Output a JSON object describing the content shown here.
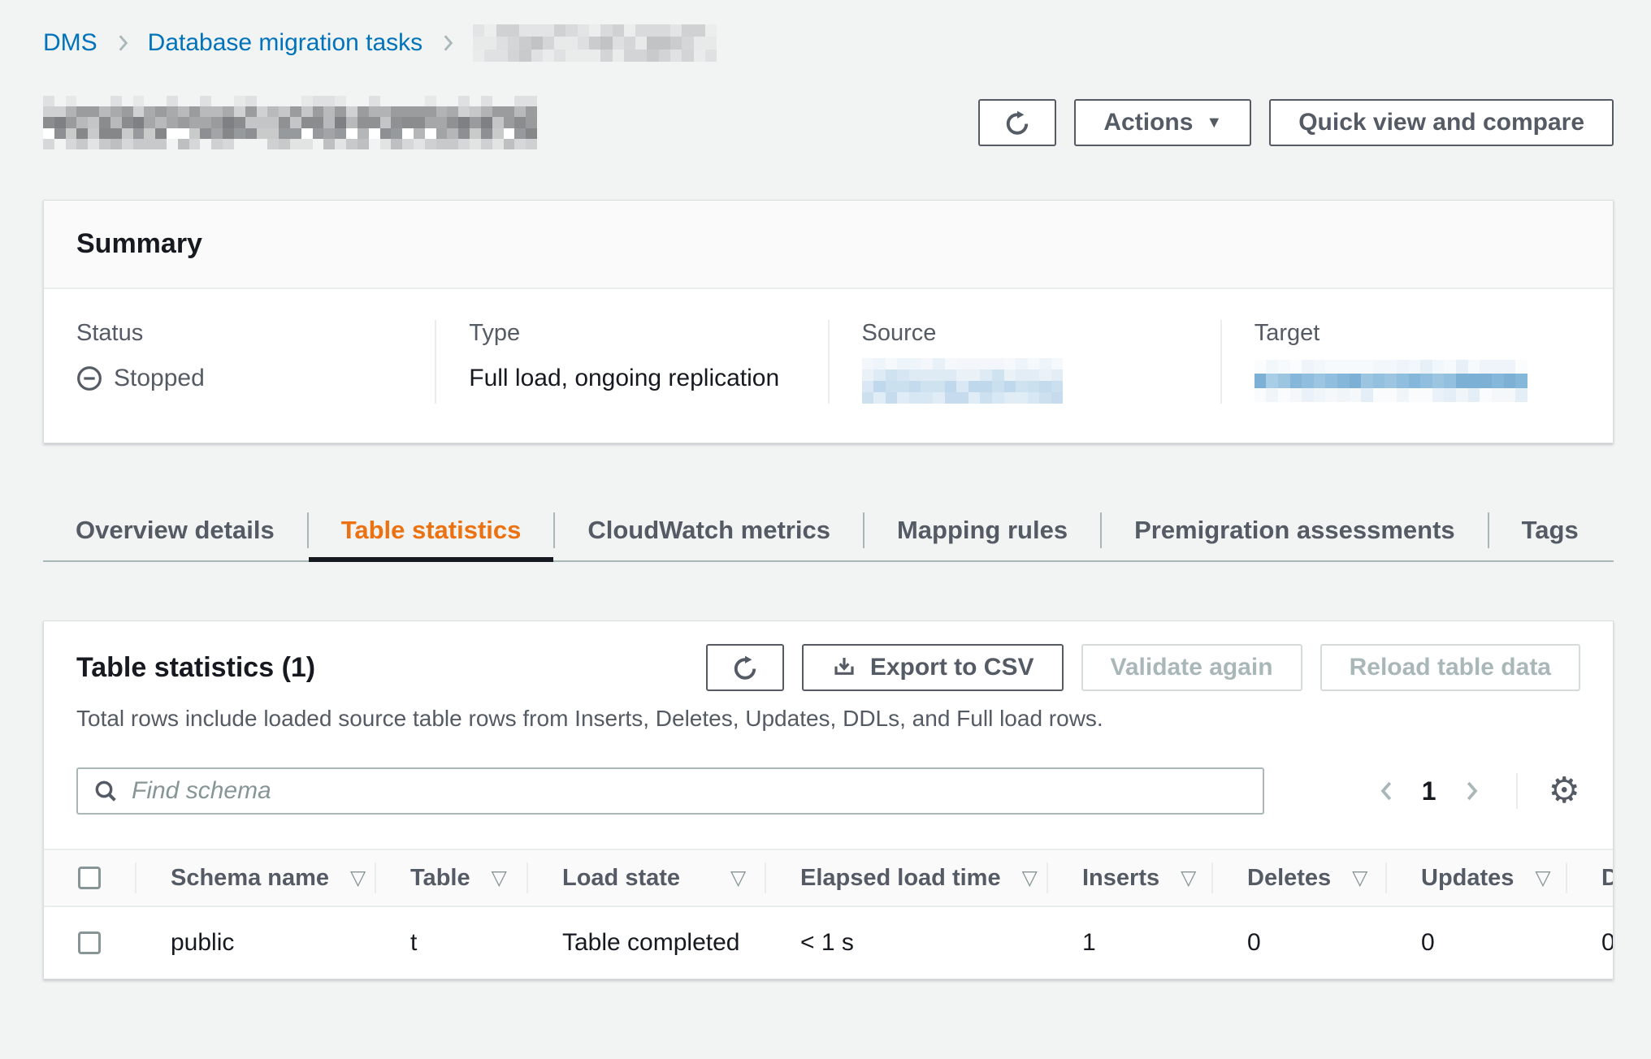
{
  "breadcrumb": {
    "items": [
      {
        "label": "DMS"
      },
      {
        "label": "Database migration tasks"
      }
    ],
    "current_item_redacted": true
  },
  "header": {
    "page_title_redacted": true,
    "actions_label": "Actions",
    "quick_view_label": "Quick view and compare"
  },
  "summary": {
    "title": "Summary",
    "fields": [
      {
        "label": "Status",
        "value": "Stopped",
        "icon": "stopped-minus-in-circle"
      },
      {
        "label": "Type",
        "value": "Full load, ongoing replication"
      },
      {
        "label": "Source",
        "value_redacted": true
      },
      {
        "label": "Target",
        "value_redacted": true
      }
    ]
  },
  "tabs": [
    {
      "label": "Overview details",
      "active": false
    },
    {
      "label": "Table statistics",
      "active": true
    },
    {
      "label": "CloudWatch metrics",
      "active": false
    },
    {
      "label": "Mapping rules",
      "active": false
    },
    {
      "label": "Premigration assessments",
      "active": false
    },
    {
      "label": "Tags",
      "active": false
    }
  ],
  "table_panel": {
    "title": "Table statistics (1)",
    "description": "Total rows include loaded source table rows from Inserts, Deletes, Updates, DDLs, and Full load rows.",
    "buttons": {
      "export_label": "Export to CSV",
      "validate_label": "Validate again",
      "validate_disabled": true,
      "reload_label": "Reload table data",
      "reload_disabled": true
    },
    "search_placeholder": "Find schema",
    "pagination": {
      "current_page": "1"
    },
    "table": {
      "columns": [
        "Schema name",
        "Table",
        "Load state",
        "Elapsed load time",
        "Inserts",
        "Deletes",
        "Updates",
        "D"
      ],
      "rows": [
        [
          "public",
          "t",
          "Table completed",
          "< 1 s",
          "1",
          "0",
          "0",
          "0"
        ]
      ]
    }
  },
  "icons": {
    "sort_glyph": "▽",
    "caret_glyph": "▼",
    "settings_glyph": "⚙",
    "refresh": "circular-arrow",
    "export": "download-into-tray",
    "search": "magnifier",
    "breadcrumb_separator": "chevron-right",
    "pagination_prev": "chevron-left",
    "pagination_next": "chevron-right"
  },
  "colors": {
    "accent_orange": "#ec7211",
    "link_blue": "#0073bb",
    "page_background": "#f2f3f3",
    "secondary_text": "#545b64"
  }
}
